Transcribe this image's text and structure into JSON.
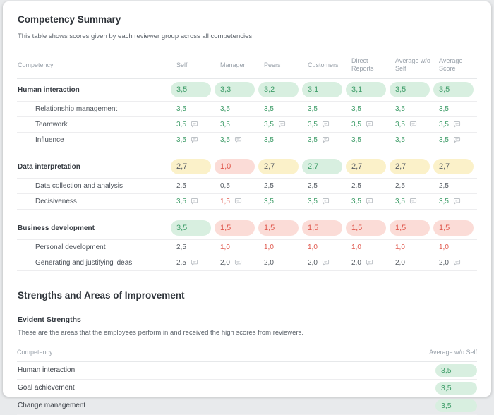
{
  "summary": {
    "title": "Competency Summary",
    "subtitle": "This table shows scores given by each reviewer group across all competencies."
  },
  "summary_table": {
    "columns": [
      "Competency",
      "Self",
      "Manager",
      "Peers",
      "Customers",
      "Direct Reports",
      "Average w/o Self",
      "Average Score"
    ],
    "groups": [
      {
        "name": "Human interaction",
        "scores": [
          {
            "value": "3,5",
            "tone": "green"
          },
          {
            "value": "3,3",
            "tone": "green"
          },
          {
            "value": "3,2",
            "tone": "green"
          },
          {
            "value": "3,1",
            "tone": "green"
          },
          {
            "value": "3,1",
            "tone": "green"
          },
          {
            "value": "3,5",
            "tone": "green"
          },
          {
            "value": "3,5",
            "tone": "green"
          }
        ],
        "rows": [
          {
            "name": "Relationship management",
            "cells": [
              {
                "value": "3,5",
                "tone": "green",
                "comment": false
              },
              {
                "value": "3,5",
                "tone": "green",
                "comment": false
              },
              {
                "value": "3,5",
                "tone": "green",
                "comment": false
              },
              {
                "value": "3,5",
                "tone": "green",
                "comment": false
              },
              {
                "value": "3,5",
                "tone": "green",
                "comment": false
              },
              {
                "value": "3,5",
                "tone": "green",
                "comment": false
              },
              {
                "value": "3,5",
                "tone": "green",
                "comment": false
              }
            ]
          },
          {
            "name": "Teamwork",
            "cells": [
              {
                "value": "3,5",
                "tone": "green",
                "comment": true
              },
              {
                "value": "3,5",
                "tone": "green",
                "comment": false
              },
              {
                "value": "3,5",
                "tone": "green",
                "comment": true
              },
              {
                "value": "3,5",
                "tone": "green",
                "comment": true
              },
              {
                "value": "3,5",
                "tone": "green",
                "comment": true
              },
              {
                "value": "3,5",
                "tone": "green",
                "comment": true
              },
              {
                "value": "3,5",
                "tone": "green",
                "comment": true
              }
            ]
          },
          {
            "name": "Influence",
            "cells": [
              {
                "value": "3,5",
                "tone": "green",
                "comment": true
              },
              {
                "value": "3,5",
                "tone": "green",
                "comment": true
              },
              {
                "value": "3,5",
                "tone": "green",
                "comment": false
              },
              {
                "value": "3,5",
                "tone": "green",
                "comment": true
              },
              {
                "value": "3,5",
                "tone": "green",
                "comment": false
              },
              {
                "value": "3,5",
                "tone": "green",
                "comment": false
              },
              {
                "value": "3,5",
                "tone": "green",
                "comment": true
              }
            ]
          }
        ]
      },
      {
        "name": "Data interpretation",
        "scores": [
          {
            "value": "2,7",
            "tone": "yellow"
          },
          {
            "value": "1,0",
            "tone": "red"
          },
          {
            "value": "2,7",
            "tone": "yellow"
          },
          {
            "value": "2,7",
            "tone": "green"
          },
          {
            "value": "2,7",
            "tone": "yellow"
          },
          {
            "value": "2,7",
            "tone": "yellow"
          },
          {
            "value": "2,7",
            "tone": "yellow"
          }
        ],
        "rows": [
          {
            "name": "Data collection and analysis",
            "cells": [
              {
                "value": "2,5",
                "tone": "gray",
                "comment": false
              },
              {
                "value": "0,5",
                "tone": "gray",
                "comment": false
              },
              {
                "value": "2,5",
                "tone": "gray",
                "comment": false
              },
              {
                "value": "2,5",
                "tone": "gray",
                "comment": false
              },
              {
                "value": "2,5",
                "tone": "gray",
                "comment": false
              },
              {
                "value": "2,5",
                "tone": "gray",
                "comment": false
              },
              {
                "value": "2,5",
                "tone": "gray",
                "comment": false
              }
            ]
          },
          {
            "name": "Decisiveness",
            "cells": [
              {
                "value": "3,5",
                "tone": "green",
                "comment": true
              },
              {
                "value": "1,5",
                "tone": "red",
                "comment": true
              },
              {
                "value": "3,5",
                "tone": "green",
                "comment": false
              },
              {
                "value": "3,5",
                "tone": "green",
                "comment": true
              },
              {
                "value": "3,5",
                "tone": "green",
                "comment": true
              },
              {
                "value": "3,5",
                "tone": "green",
                "comment": true
              },
              {
                "value": "3,5",
                "tone": "green",
                "comment": true
              }
            ]
          }
        ]
      },
      {
        "name": "Business development",
        "scores": [
          {
            "value": "3,5",
            "tone": "green"
          },
          {
            "value": "1,5",
            "tone": "red"
          },
          {
            "value": "1,5",
            "tone": "red"
          },
          {
            "value": "1,5",
            "tone": "red"
          },
          {
            "value": "1,5",
            "tone": "red"
          },
          {
            "value": "1,5",
            "tone": "red"
          },
          {
            "value": "1,5",
            "tone": "red"
          }
        ],
        "rows": [
          {
            "name": "Personal development",
            "cells": [
              {
                "value": "2,5",
                "tone": "gray",
                "comment": false
              },
              {
                "value": "1,0",
                "tone": "red",
                "comment": false
              },
              {
                "value": "1,0",
                "tone": "red",
                "comment": false
              },
              {
                "value": "1,0",
                "tone": "red",
                "comment": false
              },
              {
                "value": "1,0",
                "tone": "red",
                "comment": false
              },
              {
                "value": "1,0",
                "tone": "red",
                "comment": false
              },
              {
                "value": "1,0",
                "tone": "red",
                "comment": false
              }
            ]
          },
          {
            "name": "Generating and justifying ideas",
            "cells": [
              {
                "value": "2,5",
                "tone": "gray",
                "comment": true
              },
              {
                "value": "2,0",
                "tone": "gray",
                "comment": true
              },
              {
                "value": "2,0",
                "tone": "gray",
                "comment": false
              },
              {
                "value": "2,0",
                "tone": "gray",
                "comment": true
              },
              {
                "value": "2,0",
                "tone": "gray",
                "comment": true
              },
              {
                "value": "2,0",
                "tone": "gray",
                "comment": false
              },
              {
                "value": "2,0",
                "tone": "gray",
                "comment": true
              }
            ]
          }
        ]
      }
    ]
  },
  "strengths": {
    "title": "Strengths and Areas of Improvement",
    "section_title": "Evident Strengths",
    "description": "These are the areas that the employees perform in and received the high scores from reviewers.",
    "columns": [
      "Competency",
      "Average w/o Self"
    ],
    "rows": [
      {
        "name": "Human interaction",
        "value": "3,5",
        "tone": "green"
      },
      {
        "name": "Goal achievement",
        "value": "3,5",
        "tone": "green"
      },
      {
        "name": "Change management",
        "value": "3,5",
        "tone": "green"
      }
    ]
  },
  "colors": {
    "green_text": "#3f9d69",
    "green_bg": "#d8efe0",
    "yellow_bg": "#fbf1c9",
    "red_text": "#e0584d",
    "red_bg": "#fbdcd7",
    "neutral_value_text": "#565c63",
    "header_text": "#9aa2ab"
  }
}
